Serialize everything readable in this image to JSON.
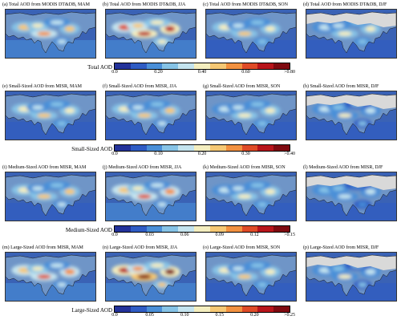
{
  "colors": {
    "scale": [
      "#23329a",
      "#2f5cc4",
      "#4a8fd8",
      "#86c3e6",
      "#c4e4ef",
      "#f4eebf",
      "#f6c874",
      "#f29140",
      "#df4b27",
      "#b8151b",
      "#7f0a10"
    ],
    "land_low": "#6f95c7",
    "ocean": "#3a62b5",
    "snow": "#d9d9d9"
  },
  "rows": [
    {
      "colorbar": {
        "label": "Total AOD",
        "ticks": [
          "0.0",
          "0.20",
          "0.40",
          "0.60",
          ">0.80"
        ]
      },
      "panels": [
        {
          "title": "(a) Total AOD from MODIS DT&DB, MAM",
          "intensity": 0.6,
          "snow": false
        },
        {
          "title": "(b) Total AOD from MODIS DT&DB, JJA",
          "intensity": 0.85,
          "snow": false
        },
        {
          "title": "(c) Total AOD from MODIS DT&DB, SON",
          "intensity": 0.5,
          "snow": false
        },
        {
          "title": "(d) Total AOD from MODIS DT&DB, DJF",
          "intensity": 0.45,
          "snow": true
        }
      ]
    },
    {
      "colorbar": {
        "label": "Small-Sized AOD",
        "ticks": [
          "0.0",
          "0.10",
          "0.20",
          "0.30",
          ">0.40"
        ]
      },
      "panels": [
        {
          "title": "(e) Small-Sized AOD from MISR, MAM",
          "intensity": 0.5,
          "snow": false
        },
        {
          "title": "(f) Small-Sized AOD from MISR, JJA",
          "intensity": 0.55,
          "snow": false
        },
        {
          "title": "(g) Small-Sized AOD from MISR, SON",
          "intensity": 0.45,
          "snow": false
        },
        {
          "title": "(h) Small-Sized AOD from MISR, DJF",
          "intensity": 0.4,
          "snow": true
        }
      ]
    },
    {
      "colorbar": {
        "label": "Medium-Sized AOD",
        "ticks": [
          "0.0",
          "0.03",
          "0.06",
          "0.09",
          "0.12",
          ">0.15"
        ]
      },
      "panels": [
        {
          "title": "(i) Medium-Sized AOD from MISR, MAM",
          "intensity": 0.55,
          "snow": false
        },
        {
          "title": "(j) Medium-Sized AOD from MISR, JJA",
          "intensity": 0.7,
          "snow": false
        },
        {
          "title": "(k) Medium-Sized AOD from MISR, SON",
          "intensity": 0.45,
          "snow": false
        },
        {
          "title": "(l) Medium-Sized AOD from MISR, DJF",
          "intensity": 0.35,
          "snow": true
        }
      ]
    },
    {
      "colorbar": {
        "label": "Large-Sized AOD",
        "ticks": [
          "0.0",
          "0.05",
          "0.10",
          "0.15",
          "0.20",
          ">0.25"
        ]
      },
      "panels": [
        {
          "title": "(m) Large-Sized AOD from MISR, MAM",
          "intensity": 0.7,
          "snow": false
        },
        {
          "title": "(n) Large-Sized AOD from MISR, JJA",
          "intensity": 0.95,
          "snow": false
        },
        {
          "title": "(o) Large-Sized AOD from MISR, SON",
          "intensity": 0.5,
          "snow": false
        },
        {
          "title": "(p) Large-Sized AOD from MISR, DJF",
          "intensity": 0.4,
          "snow": true
        }
      ]
    }
  ]
}
